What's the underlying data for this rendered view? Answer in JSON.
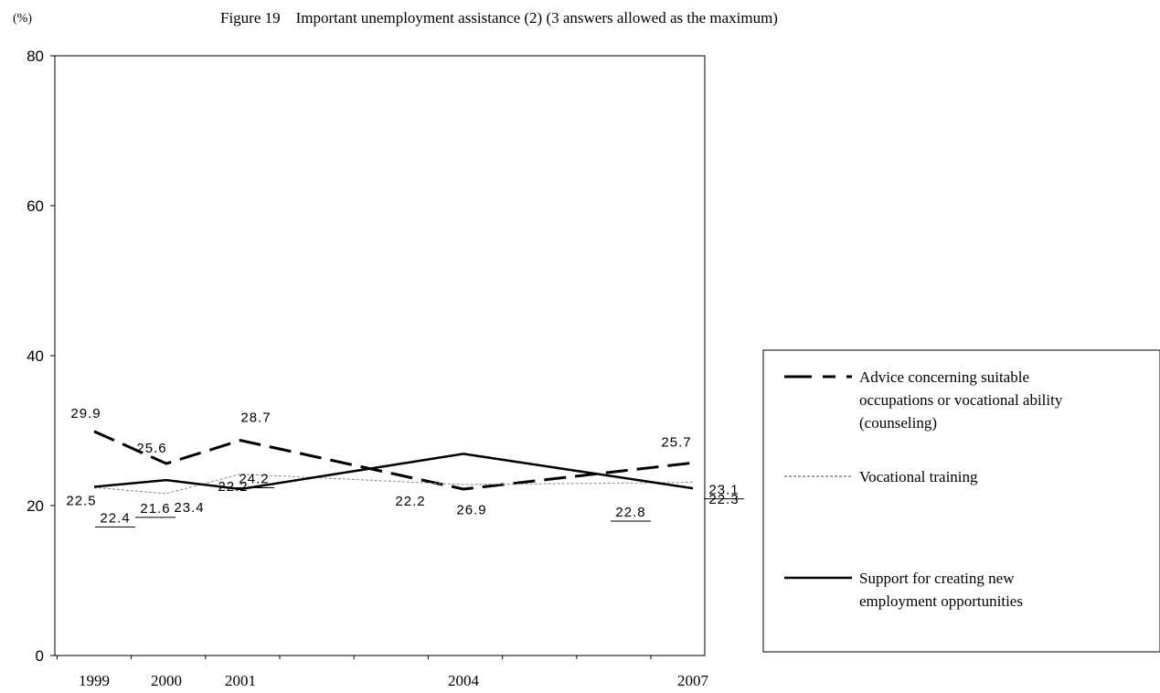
{
  "chart_data": {
    "type": "line",
    "title": "Figure 19 Important unemployment assistance (2) (3 answers allowed as the maximum)",
    "y_unit": "(%)",
    "ylim": [
      0,
      80
    ],
    "y_ticks": [
      0,
      20,
      40,
      60,
      80
    ],
    "categories": [
      "1999",
      "2000",
      "2001",
      "2004",
      "2007"
    ],
    "x_years": [
      1999,
      2000,
      2001,
      2004,
      2007
    ],
    "grid": false,
    "legend_position": "right",
    "series": [
      {
        "name": "Advice concerning suitable occupations or vocational ability (counseling)",
        "legend_lines": [
          "Advice concerning suitable",
          "occupations or vocational ability",
          "(counseling)"
        ],
        "style": "dashed-bold",
        "color": "#000000",
        "values": [
          29.9,
          25.6,
          28.7,
          22.2,
          25.7
        ],
        "labels": [
          "29.9",
          "25.6",
          "28.7",
          "22.2",
          "25.7"
        ]
      },
      {
        "name": "Vocational training",
        "legend_lines": [
          "Vocational training"
        ],
        "style": "dotted-thin",
        "color": "#888888",
        "values": [
          22.4,
          21.6,
          24.2,
          22.8,
          23.1
        ],
        "labels": [
          "22.4",
          "21.6",
          "24.2",
          "22.8",
          "23.1"
        ]
      },
      {
        "name": "Support for creating new employment opportunities",
        "legend_lines": [
          "Support for creating new",
          "employment opportunities"
        ],
        "style": "solid-bold",
        "color": "#000000",
        "values": [
          22.5,
          23.4,
          22.2,
          26.9,
          22.3
        ],
        "labels": [
          "22.5",
          "23.4",
          "22.2",
          "26.9",
          "22.3"
        ]
      }
    ]
  }
}
